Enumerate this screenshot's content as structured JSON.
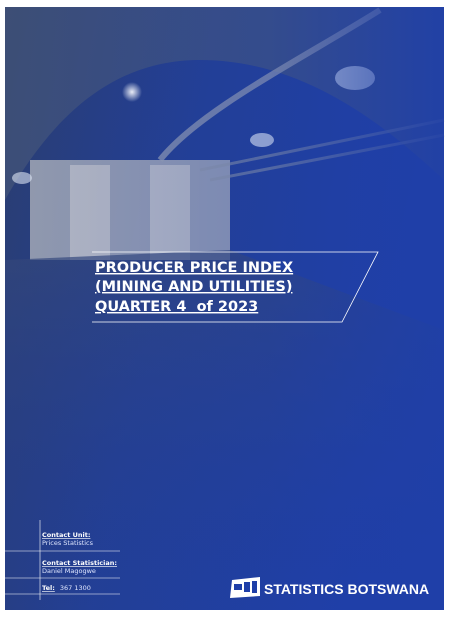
{
  "cover": {
    "title": [
      "PRODUCER PRICE INDEX",
      "(MINING AND UTILITIES)",
      "QUARTER 4  of 2023"
    ],
    "contact": {
      "unit_label": "Contact Unit:",
      "unit": "Prices Statistics",
      "statistician_label": "Contact Statistician:",
      "statistician": "Daniel Magogwe",
      "tel_label": "Tel:",
      "tel": "367 1300"
    },
    "organization": "STATISTICS BOTSWANA"
  }
}
